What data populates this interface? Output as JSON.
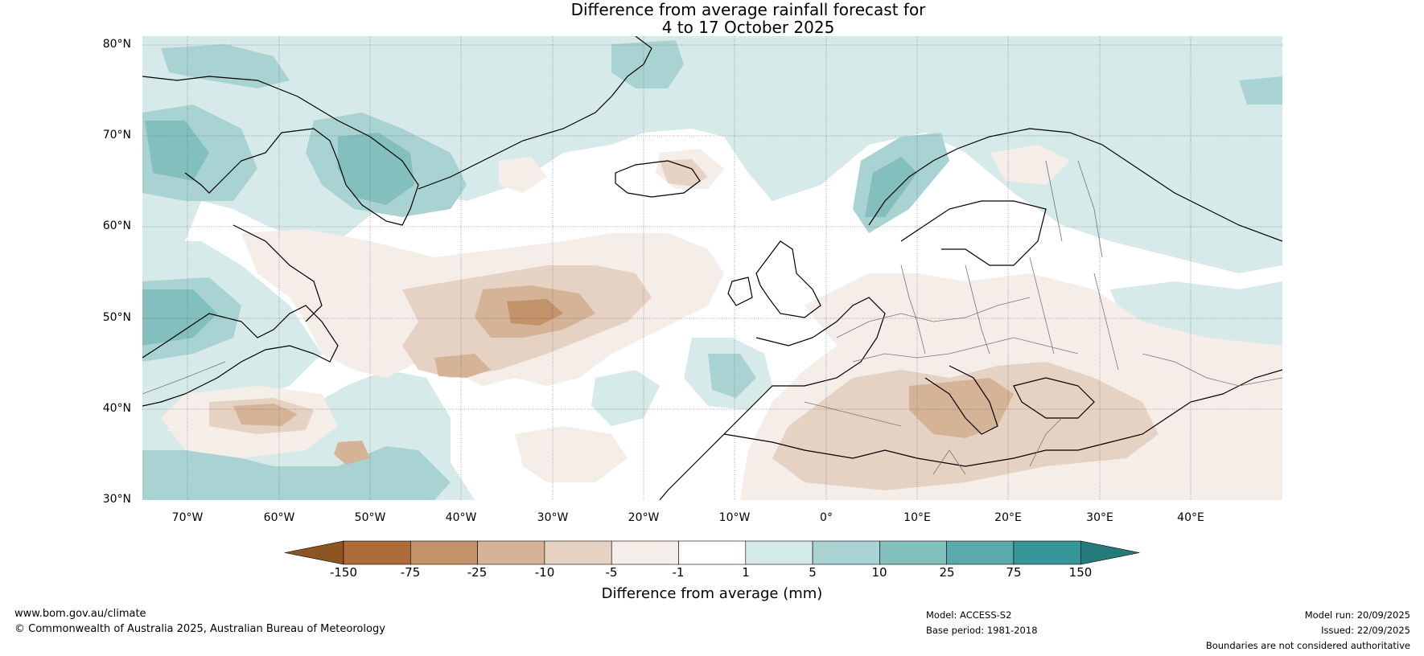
{
  "title": {
    "line1": "Difference from average rainfall forecast for",
    "line2": "4 to 17 October 2025"
  },
  "map": {
    "lat_labels": [
      "80°N",
      "70°N",
      "60°N",
      "50°N",
      "40°N",
      "30°N"
    ],
    "lon_labels": [
      "70°W",
      "60°W",
      "50°W",
      "40°W",
      "30°W",
      "20°W",
      "10°W",
      "0°",
      "10°E",
      "20°E",
      "30°E",
      "40°E"
    ],
    "lat_range": [
      30,
      81
    ],
    "lon_range": [
      -75,
      50
    ]
  },
  "colorbar": {
    "label": "Difference from average (mm)",
    "ticks": [
      "-150",
      "-75",
      "-25",
      "-10",
      "-5",
      "-1",
      "1",
      "5",
      "10",
      "25",
      "75",
      "150"
    ],
    "colors": [
      "#8c5524",
      "#ad6d3b",
      "#c29269",
      "#d4b396",
      "#e6d2c2",
      "#f4ede8",
      "#ffffff",
      "#d6eae9",
      "#a9d3d2",
      "#82bfbd",
      "#5aaaaa",
      "#35979a",
      "#257a7c"
    ]
  },
  "footer": {
    "website": "www.bom.gov.au/climate",
    "copyright": "© Commonwealth of Australia 2025, Australian Bureau of Meteorology",
    "model": "Model: ACCESS-S2",
    "base_period": "Base period: 1981-2018",
    "model_run": "Model run: 20/09/2025",
    "issued": "Issued: 22/09/2025",
    "disclaimer": "Boundaries are not considered authoritative"
  }
}
